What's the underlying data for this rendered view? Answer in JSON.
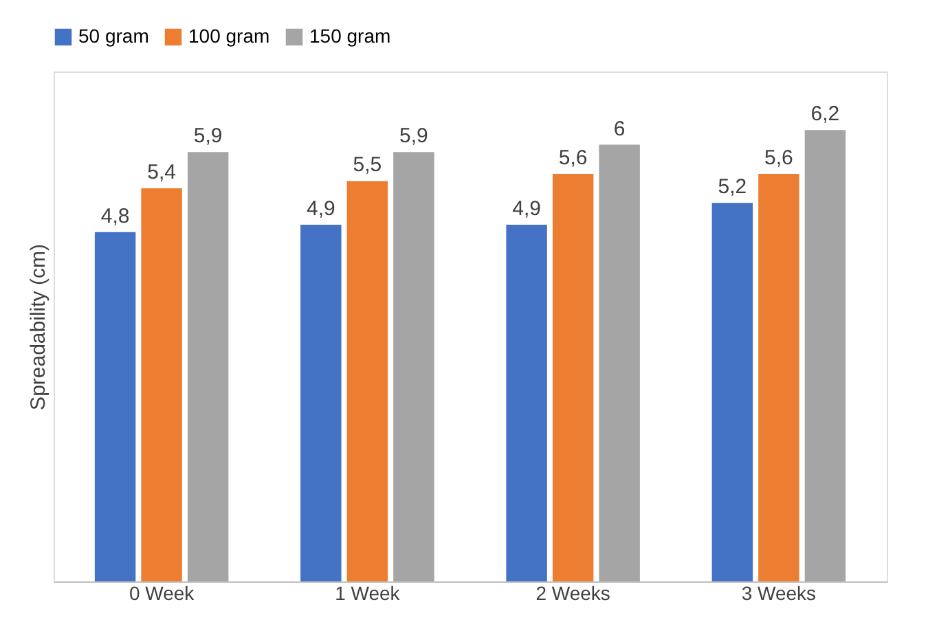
{
  "chart_data": {
    "type": "bar",
    "ylabel": "Spreadability (cm)",
    "categories": [
      "0 Week",
      "1 Week",
      "2 Weeks",
      "3 Weeks"
    ],
    "series": [
      {
        "name": "50 gram",
        "color": "#4472c4",
        "values": [
          4.8,
          4.9,
          4.9,
          5.2
        ],
        "value_labels": [
          "4,8",
          "4,9",
          "4,9",
          "5,2"
        ]
      },
      {
        "name": "100 gram",
        "color": "#ed7d31",
        "values": [
          5.4,
          5.5,
          5.6,
          5.6
        ],
        "value_labels": [
          "5,4",
          "5,5",
          "5,6",
          "5,6"
        ]
      },
      {
        "name": "150 gram",
        "color": "#a5a5a5",
        "values": [
          5.9,
          5.9,
          6,
          6.2
        ],
        "value_labels": [
          "5,9",
          "5,9",
          "6",
          "6,2"
        ]
      }
    ],
    "legend": "top",
    "grid": false
  }
}
